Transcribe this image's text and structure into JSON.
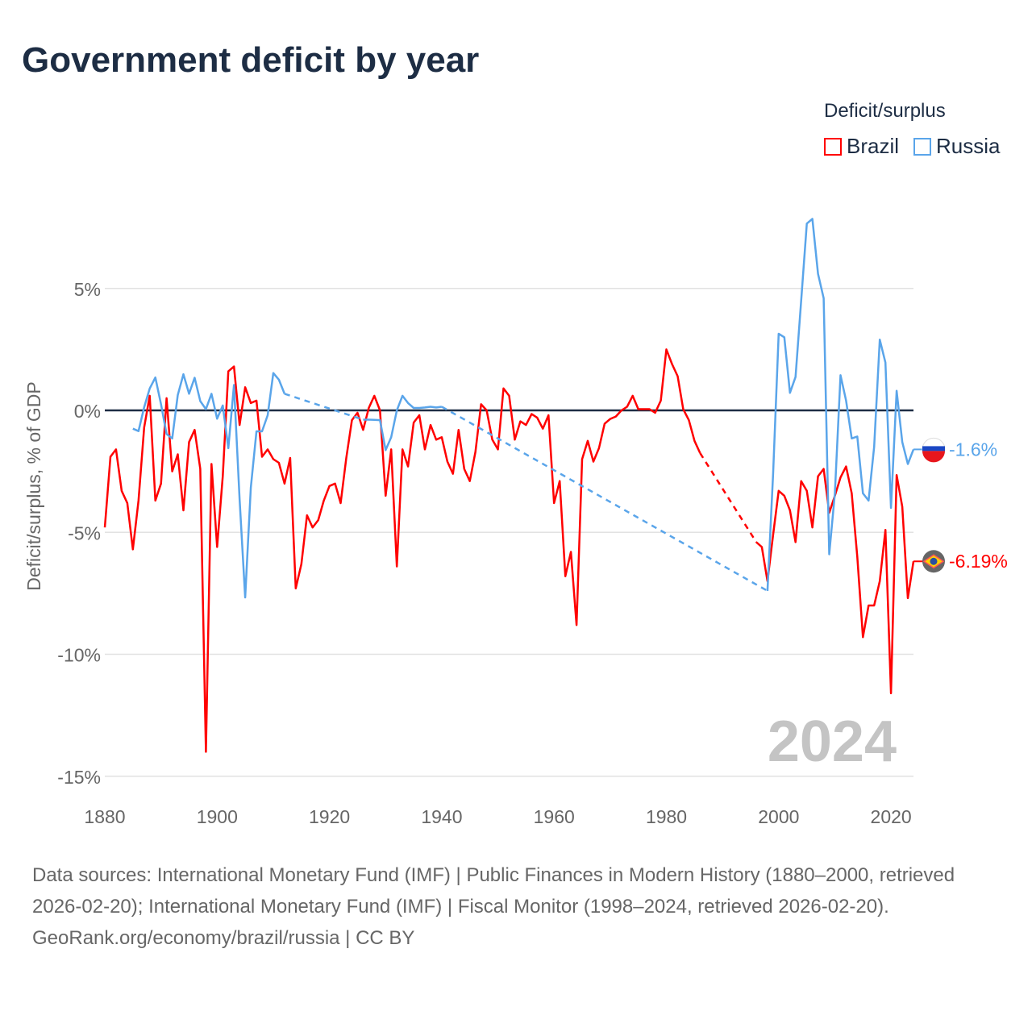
{
  "title": "Government deficit by year",
  "legend": {
    "title": "Deficit/surplus",
    "items": [
      {
        "label": "Brazil",
        "color": "#ff0000"
      },
      {
        "label": "Russia",
        "color": "#5aa5ea"
      }
    ]
  },
  "chart_data": {
    "type": "line",
    "title": "Government deficit by year",
    "xlabel": "",
    "ylabel": "Deficit/surplus, % of GDP",
    "xlim": [
      1880,
      2024
    ],
    "ylim": [
      -15,
      9
    ],
    "x_ticks": [
      {
        "value": 1880,
        "label": "1880"
      },
      {
        "value": 1900,
        "label": "1900"
      },
      {
        "value": 1920,
        "label": "1920"
      },
      {
        "value": 1940,
        "label": "1940"
      },
      {
        "value": 1960,
        "label": "1960"
      },
      {
        "value": 1980,
        "label": "1980"
      },
      {
        "value": 2000,
        "label": "2000"
      },
      {
        "value": 2020,
        "label": "2020"
      }
    ],
    "y_ticks": [
      {
        "value": 5,
        "label": "5%"
      },
      {
        "value": 0,
        "label": "0%"
      },
      {
        "value": -5,
        "label": "-5%"
      },
      {
        "value": -10,
        "label": "-10%"
      },
      {
        "value": -15,
        "label": "-15%"
      }
    ],
    "grid": true,
    "legend_position": "top-right",
    "year_watermark": "2024",
    "series": [
      {
        "name": "Brazil",
        "color": "#ff0000",
        "end_label": "-6.19%",
        "flag_icon": "brazil-flag-icon",
        "points": [
          [
            1880,
            -4.8
          ],
          [
            1881,
            -1.9
          ],
          [
            1882,
            -1.6
          ],
          [
            1883,
            -3.3
          ],
          [
            1884,
            -3.8
          ],
          [
            1885,
            -5.7
          ],
          [
            1886,
            -3.7
          ],
          [
            1887,
            -0.7
          ],
          [
            1888,
            0.6
          ],
          [
            1889,
            -3.7
          ],
          [
            1890,
            -3.0
          ],
          [
            1891,
            0.5
          ],
          [
            1892,
            -2.5
          ],
          [
            1893,
            -1.8
          ],
          [
            1894,
            -4.1
          ],
          [
            1895,
            -1.3
          ],
          [
            1896,
            -0.8
          ],
          [
            1897,
            -2.4
          ],
          [
            1898,
            -14.0
          ],
          [
            1899,
            -2.2
          ],
          [
            1900,
            -5.6
          ],
          [
            1901,
            -2.7
          ],
          [
            1902,
            1.6
          ],
          [
            1903,
            1.8
          ],
          [
            1904,
            -0.6
          ],
          [
            1905,
            0.95
          ],
          [
            1906,
            0.3
          ],
          [
            1907,
            0.4
          ],
          [
            1908,
            -1.9
          ],
          [
            1909,
            -1.6
          ],
          [
            1910,
            -2.0
          ],
          [
            1911,
            -2.15
          ],
          [
            1912,
            -3.0
          ],
          [
            1913,
            -1.95
          ],
          [
            1914,
            -7.3
          ],
          [
            1915,
            -6.3
          ],
          [
            1916,
            -4.3
          ],
          [
            1917,
            -4.8
          ],
          [
            1918,
            -4.5
          ],
          [
            1919,
            -3.7
          ],
          [
            1920,
            -3.1
          ],
          [
            1921,
            -3.0
          ],
          [
            1922,
            -3.8
          ],
          [
            1923,
            -1.95
          ],
          [
            1924,
            -0.4
          ],
          [
            1925,
            -0.1
          ],
          [
            1926,
            -0.8
          ],
          [
            1927,
            0.1
          ],
          [
            1928,
            0.6
          ],
          [
            1929,
            0.0
          ],
          [
            1930,
            -3.5
          ],
          [
            1931,
            -1.6
          ],
          [
            1932,
            -6.4
          ],
          [
            1933,
            -1.6
          ],
          [
            1934,
            -2.3
          ],
          [
            1935,
            -0.5
          ],
          [
            1936,
            -0.2
          ],
          [
            1937,
            -1.6
          ],
          [
            1938,
            -0.6
          ],
          [
            1939,
            -1.2
          ],
          [
            1940,
            -1.1
          ],
          [
            1941,
            -2.1
          ],
          [
            1942,
            -2.6
          ],
          [
            1943,
            -0.8
          ],
          [
            1944,
            -2.4
          ],
          [
            1945,
            -2.9
          ],
          [
            1946,
            -1.7
          ],
          [
            1947,
            0.25
          ],
          [
            1948,
            0.0
          ],
          [
            1949,
            -1.2
          ],
          [
            1950,
            -1.6
          ],
          [
            1951,
            0.9
          ],
          [
            1952,
            0.6
          ],
          [
            1953,
            -1.2
          ],
          [
            1954,
            -0.45
          ],
          [
            1955,
            -0.6
          ],
          [
            1956,
            -0.15
          ],
          [
            1957,
            -0.3
          ],
          [
            1958,
            -0.75
          ],
          [
            1959,
            -0.2
          ],
          [
            1960,
            -3.8
          ],
          [
            1961,
            -2.9
          ],
          [
            1962,
            -6.8
          ],
          [
            1963,
            -5.8
          ],
          [
            1964,
            -8.8
          ],
          [
            1965,
            -2.0
          ],
          [
            1966,
            -1.25
          ],
          [
            1967,
            -2.1
          ],
          [
            1968,
            -1.55
          ],
          [
            1969,
            -0.55
          ],
          [
            1970,
            -0.35
          ],
          [
            1971,
            -0.25
          ],
          [
            1972,
            0.0
          ],
          [
            1973,
            0.15
          ],
          [
            1974,
            0.6
          ],
          [
            1975,
            0.05
          ],
          [
            1976,
            0.05
          ],
          [
            1977,
            0.05
          ],
          [
            1978,
            -0.1
          ],
          [
            1979,
            0.4
          ],
          [
            1980,
            2.5
          ],
          [
            1981,
            1.9
          ],
          [
            1982,
            1.4
          ],
          [
            1983,
            0.05
          ],
          [
            1984,
            -0.4
          ],
          [
            1985,
            -1.25
          ],
          [
            1986,
            -1.75
          ],
          [
            1996,
            -5.4
          ],
          [
            1997,
            -5.6
          ],
          [
            1998,
            -7.0
          ],
          [
            1999,
            -5.1
          ],
          [
            2000,
            -3.3
          ],
          [
            2001,
            -3.5
          ],
          [
            2002,
            -4.1
          ],
          [
            2003,
            -5.4
          ],
          [
            2004,
            -2.9
          ],
          [
            2005,
            -3.3
          ],
          [
            2006,
            -4.8
          ],
          [
            2007,
            -2.7
          ],
          [
            2008,
            -2.4
          ],
          [
            2009,
            -4.2
          ],
          [
            2010,
            -3.5
          ],
          [
            2011,
            -2.75
          ],
          [
            2012,
            -2.3
          ],
          [
            2013,
            -3.4
          ],
          [
            2014,
            -6.0
          ],
          [
            2015,
            -9.3
          ],
          [
            2016,
            -8.0
          ],
          [
            2017,
            -8.0
          ],
          [
            2018,
            -7.0
          ],
          [
            2019,
            -4.9
          ],
          [
            2020,
            -11.6
          ],
          [
            2021,
            -2.65
          ],
          [
            2022,
            -3.95
          ],
          [
            2023,
            -7.7
          ],
          [
            2024,
            -6.19
          ]
        ]
      },
      {
        "name": "Russia",
        "color": "#5aa5ea",
        "end_label": "-1.6%",
        "flag_icon": "russia-flag-icon",
        "points": [
          [
            1885,
            -0.75
          ],
          [
            1886,
            -0.85
          ],
          [
            1887,
            0.13
          ],
          [
            1888,
            0.9
          ],
          [
            1889,
            1.35
          ],
          [
            1890,
            0.25
          ],
          [
            1891,
            -0.97
          ],
          [
            1892,
            -1.15
          ],
          [
            1893,
            0.63
          ],
          [
            1894,
            1.48
          ],
          [
            1895,
            0.68
          ],
          [
            1896,
            1.34
          ],
          [
            1897,
            0.38
          ],
          [
            1898,
            0.05
          ],
          [
            1899,
            0.68
          ],
          [
            1900,
            -0.34
          ],
          [
            1901,
            0.2
          ],
          [
            1902,
            -1.55
          ],
          [
            1903,
            1.04
          ],
          [
            1904,
            -3.66
          ],
          [
            1905,
            -7.67
          ],
          [
            1906,
            -3.16
          ],
          [
            1907,
            -0.86
          ],
          [
            1908,
            -0.86
          ],
          [
            1909,
            -0.2
          ],
          [
            1910,
            1.53
          ],
          [
            1911,
            1.26
          ],
          [
            1912,
            0.68
          ],
          [
            1926,
            -0.38
          ],
          [
            1927,
            -0.38
          ],
          [
            1928,
            -0.39
          ],
          [
            1929,
            -0.4
          ],
          [
            1930,
            -1.63
          ],
          [
            1931,
            -1.1
          ],
          [
            1932,
            0.0
          ],
          [
            1933,
            0.6
          ],
          [
            1934,
            0.3
          ],
          [
            1935,
            0.1
          ],
          [
            1936,
            0.1
          ],
          [
            1937,
            0.12
          ],
          [
            1938,
            0.15
          ],
          [
            1939,
            0.12
          ],
          [
            1940,
            0.15
          ],
          [
            1998,
            -7.4
          ],
          [
            1999,
            -2.6
          ],
          [
            2000,
            3.14
          ],
          [
            2001,
            3.0
          ],
          [
            2002,
            0.72
          ],
          [
            2003,
            1.37
          ],
          [
            2004,
            4.5
          ],
          [
            2005,
            7.66
          ],
          [
            2006,
            7.85
          ],
          [
            2007,
            5.6
          ],
          [
            2008,
            4.6
          ],
          [
            2009,
            -5.9
          ],
          [
            2010,
            -3.4
          ],
          [
            2011,
            1.44
          ],
          [
            2012,
            0.4
          ],
          [
            2013,
            -1.15
          ],
          [
            2014,
            -1.07
          ],
          [
            2015,
            -3.4
          ],
          [
            2016,
            -3.7
          ],
          [
            2017,
            -1.5
          ],
          [
            2018,
            2.9
          ],
          [
            2019,
            1.96
          ],
          [
            2020,
            -4.0
          ],
          [
            2021,
            0.8
          ],
          [
            2022,
            -1.3
          ],
          [
            2023,
            -2.2
          ],
          [
            2024,
            -1.6
          ]
        ]
      }
    ]
  },
  "footer": {
    "sources": "Data sources: International Monetary Fund (IMF) | Public Finances in Modern History (1880–2000, retrieved 2026-02-20); International Monetary Fund (IMF) | Fiscal Monitor (1998–2024, retrieved 2026-02-20).",
    "credit": "GeoRank.org/economy/brazil/russia | CC BY"
  }
}
